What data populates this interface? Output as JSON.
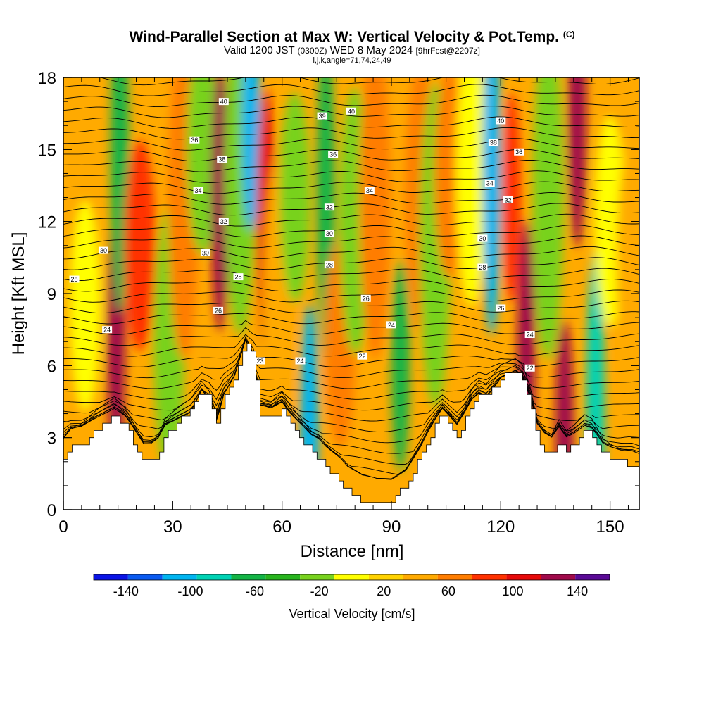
{
  "chart_data": {
    "type": "heatmap",
    "title": "Wind-Parallel Section at Max W: Vertical Velocity & Pot.Temp.",
    "title_mark": "(C)",
    "subtitle_main": "Valid 1200 JST",
    "subtitle_utc": "(0300Z)",
    "subtitle_date": "WED 8 May 2024",
    "subtitle_fcst": "[9hrFcst@2207z]",
    "subtitle2": "i,j,k,angle=71,74,24,49",
    "xlabel": "Distance [nm]",
    "ylabel": "Height [Kft MSL]",
    "xlim": [
      0,
      158
    ],
    "ylim": [
      0,
      18
    ],
    "x_ticks": [
      "0",
      "30",
      "60",
      "90",
      "120",
      "150"
    ],
    "x_tick_values": [
      0,
      30,
      60,
      90,
      120,
      150
    ],
    "y_ticks": [
      "0",
      "3",
      "6",
      "9",
      "12",
      "15",
      "18"
    ],
    "y_tick_values": [
      0,
      3,
      6,
      9,
      12,
      15,
      18
    ],
    "colorbar": {
      "label": "Vertical Velocity [cm/s]",
      "tick_labels": [
        "-140",
        "-100",
        "-60",
        "-20",
        "20",
        "60",
        "100",
        "140"
      ],
      "tick_values": [
        -140,
        -100,
        -60,
        -20,
        20,
        60,
        100,
        140
      ],
      "bounds": [
        -160,
        160
      ],
      "step": 20,
      "colors": [
        "#0a14e6",
        "#0a5af0",
        "#00b4f0",
        "#00d2b4",
        "#14b446",
        "#28b41e",
        "#78d21e",
        "#ffff00",
        "#ffd200",
        "#ffaa00",
        "#ff7d00",
        "#ff3200",
        "#e60a0a",
        "#a00a4b",
        "#5a0a96"
      ]
    },
    "terrain": {
      "distance_nm": [
        0,
        2,
        5,
        10,
        14,
        17,
        20,
        22,
        24,
        26,
        28,
        30,
        32,
        35,
        38,
        40,
        42,
        44,
        47,
        50,
        52,
        54,
        57,
        60,
        62,
        65,
        68,
        70,
        72,
        74,
        76,
        78,
        80,
        82,
        86,
        90,
        92,
        94,
        96,
        98,
        100,
        102,
        104,
        106,
        108,
        110,
        112,
        114,
        116,
        120,
        124,
        126,
        128,
        130,
        132,
        134,
        136,
        138,
        140,
        143,
        145,
        148,
        150,
        153,
        156,
        158
      ],
      "height_kft": [
        2.2,
        2.6,
        2.7,
        3.4,
        3.9,
        3.5,
        2.6,
        2.0,
        2.0,
        2.3,
        3.1,
        3.4,
        3.7,
        4.1,
        5.0,
        4.6,
        3.6,
        4.8,
        5.6,
        7.1,
        6.3,
        4.0,
        3.8,
        4.2,
        3.6,
        3.0,
        2.4,
        2.2,
        1.8,
        1.5,
        1.2,
        0.8,
        0.6,
        0.4,
        0.3,
        0.4,
        0.7,
        1.0,
        1.6,
        2.2,
        2.9,
        3.5,
        4.0,
        3.5,
        3.0,
        3.6,
        4.4,
        4.8,
        4.6,
        5.5,
        5.8,
        5.5,
        4.5,
        2.9,
        2.4,
        2.2,
        2.9,
        2.4,
        2.7,
        3.3,
        3.2,
        2.4,
        2.2,
        2.0,
        1.9,
        1.7
      ]
    },
    "velocity_features": [
      {
        "distance_nm": 6,
        "height_kft": 8.5,
        "w_cm_s": -20
      },
      {
        "distance_nm": 14.5,
        "height_kft": 7.0,
        "w_cm_s": 110
      },
      {
        "distance_nm": 15.5,
        "height_kft": 15.0,
        "w_cm_s": -70
      },
      {
        "distance_nm": 21,
        "height_kft": 11.0,
        "w_cm_s": 60
      },
      {
        "distance_nm": 29,
        "height_kft": 7.0,
        "w_cm_s": -30
      },
      {
        "distance_nm": 33,
        "height_kft": 13.0,
        "w_cm_s": 40
      },
      {
        "distance_nm": 38,
        "height_kft": 15.0,
        "w_cm_s": -40
      },
      {
        "distance_nm": 43,
        "height_kft": 13.0,
        "w_cm_s": 100
      },
      {
        "distance_nm": 48.5,
        "height_kft": 14.0,
        "w_cm_s": -40
      },
      {
        "distance_nm": 51.5,
        "height_kft": 16.0,
        "w_cm_s": -110
      },
      {
        "distance_nm": 55.5,
        "height_kft": 12.0,
        "w_cm_s": 90
      },
      {
        "distance_nm": 59,
        "height_kft": 8.0,
        "w_cm_s": 30
      },
      {
        "distance_nm": 63.5,
        "height_kft": 13.0,
        "w_cm_s": -30
      },
      {
        "distance_nm": 67.5,
        "height_kft": 3.0,
        "w_cm_s": -110
      },
      {
        "distance_nm": 72,
        "height_kft": 13.0,
        "w_cm_s": -70
      },
      {
        "distance_nm": 76,
        "height_kft": 7.0,
        "w_cm_s": 50
      },
      {
        "distance_nm": 80,
        "height_kft": 12.0,
        "w_cm_s": -30
      },
      {
        "distance_nm": 85.5,
        "height_kft": 13.0,
        "w_cm_s": 50
      },
      {
        "distance_nm": 92.5,
        "height_kft": 6.0,
        "w_cm_s": -80
      },
      {
        "distance_nm": 98,
        "height_kft": 13.0,
        "w_cm_s": 40
      },
      {
        "distance_nm": 102,
        "height_kft": 11.0,
        "w_cm_s": -30
      },
      {
        "distance_nm": 106,
        "height_kft": 14.0,
        "w_cm_s": 40
      },
      {
        "distance_nm": 112,
        "height_kft": 14.0,
        "w_cm_s": -20
      },
      {
        "distance_nm": 117.5,
        "height_kft": 14.0,
        "w_cm_s": -120
      },
      {
        "distance_nm": 123,
        "height_kft": 13.0,
        "w_cm_s": 70
      },
      {
        "distance_nm": 127,
        "height_kft": 6.5,
        "w_cm_s": 100
      },
      {
        "distance_nm": 133,
        "height_kft": 13.0,
        "w_cm_s": -30
      },
      {
        "distance_nm": 137.5,
        "height_kft": 3.5,
        "w_cm_s": 100
      },
      {
        "distance_nm": 141,
        "height_kft": 16.5,
        "w_cm_s": 110
      },
      {
        "distance_nm": 146,
        "height_kft": 4.0,
        "w_cm_s": -100
      },
      {
        "distance_nm": 150,
        "height_kft": 12.0,
        "w_cm_s": -20
      },
      {
        "distance_nm": 156,
        "height_kft": 10.0,
        "w_cm_s": 20
      }
    ],
    "theta_contour_levels_C": [
      22,
      24,
      26,
      28,
      30,
      32,
      34,
      36,
      38,
      40
    ],
    "theta_labels": [
      {
        "text": "40",
        "distance_nm": 44,
        "height_kft": 17.0
      },
      {
        "text": "38",
        "distance_nm": 43.5,
        "height_kft": 14.6
      },
      {
        "text": "36",
        "distance_nm": 36,
        "height_kft": 15.4
      },
      {
        "text": "34",
        "distance_nm": 37,
        "height_kft": 13.3
      },
      {
        "text": "32",
        "distance_nm": 44,
        "height_kft": 12.0
      },
      {
        "text": "30",
        "distance_nm": 11,
        "height_kft": 10.8
      },
      {
        "text": "30",
        "distance_nm": 39,
        "height_kft": 10.7
      },
      {
        "text": "28",
        "distance_nm": 3,
        "height_kft": 9.6
      },
      {
        "text": "28",
        "distance_nm": 48,
        "height_kft": 9.7
      },
      {
        "text": "26",
        "distance_nm": 42.5,
        "height_kft": 8.3
      },
      {
        "text": "24",
        "distance_nm": 12,
        "height_kft": 7.5
      },
      {
        "text": "23",
        "distance_nm": 54,
        "height_kft": 6.2
      },
      {
        "text": "24",
        "distance_nm": 65,
        "height_kft": 6.2
      },
      {
        "text": "39",
        "distance_nm": 71,
        "height_kft": 16.4
      },
      {
        "text": "40",
        "distance_nm": 79,
        "height_kft": 16.6
      },
      {
        "text": "36",
        "distance_nm": 74,
        "height_kft": 14.8
      },
      {
        "text": "34",
        "distance_nm": 84,
        "height_kft": 13.3
      },
      {
        "text": "32",
        "distance_nm": 73,
        "height_kft": 12.6
      },
      {
        "text": "30",
        "distance_nm": 73,
        "height_kft": 11.5
      },
      {
        "text": "28",
        "distance_nm": 73,
        "height_kft": 10.2
      },
      {
        "text": "26",
        "distance_nm": 83,
        "height_kft": 8.8
      },
      {
        "text": "24",
        "distance_nm": 90,
        "height_kft": 7.7
      },
      {
        "text": "22",
        "distance_nm": 82,
        "height_kft": 6.4
      },
      {
        "text": "40",
        "distance_nm": 120,
        "height_kft": 16.2
      },
      {
        "text": "38",
        "distance_nm": 118,
        "height_kft": 15.3
      },
      {
        "text": "36",
        "distance_nm": 125,
        "height_kft": 14.9
      },
      {
        "text": "34",
        "distance_nm": 117,
        "height_kft": 13.6
      },
      {
        "text": "32",
        "distance_nm": 122,
        "height_kft": 12.9
      },
      {
        "text": "30",
        "distance_nm": 115,
        "height_kft": 11.3
      },
      {
        "text": "28",
        "distance_nm": 115,
        "height_kft": 10.1
      },
      {
        "text": "26",
        "distance_nm": 120,
        "height_kft": 8.4
      },
      {
        "text": "24",
        "distance_nm": 128,
        "height_kft": 7.3
      },
      {
        "text": "22",
        "distance_nm": 128,
        "height_kft": 5.9
      }
    ]
  }
}
